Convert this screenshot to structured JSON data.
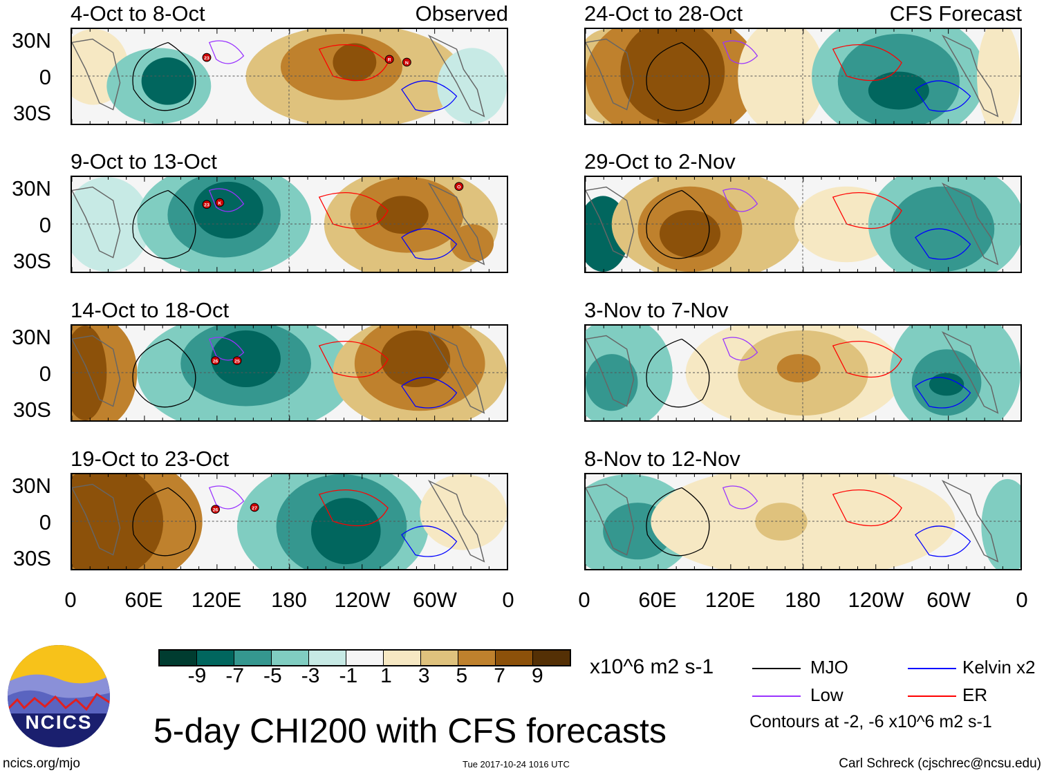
{
  "panels": {
    "observed_label": "Observed",
    "forecast_label": "CFS Forecast",
    "left": [
      {
        "title": "4-Oct to 8-Oct",
        "storms": [
          "23",
          "R",
          "N"
        ]
      },
      {
        "title": "9-Oct to 13-Oct",
        "storms": [
          "23",
          "K",
          "O"
        ]
      },
      {
        "title": "14-Oct to 18-Oct",
        "storms": [
          "26",
          "25"
        ]
      },
      {
        "title": "19-Oct to 23-Oct",
        "storms": [
          "26",
          "27"
        ]
      }
    ],
    "right": [
      {
        "title": "24-Oct to 28-Oct"
      },
      {
        "title": "29-Oct to 2-Nov"
      },
      {
        "title": "3-Nov to 7-Nov"
      },
      {
        "title": "8-Nov to 12-Nov"
      }
    ]
  },
  "axes": {
    "lat_labels": [
      "30N",
      "0",
      "30S"
    ],
    "lon_labels": [
      "0",
      "60E",
      "120E",
      "180",
      "120W",
      "60W",
      "0"
    ]
  },
  "colorbar": {
    "colors": [
      "#003c30",
      "#01665e",
      "#35978f",
      "#80cdc1",
      "#c7eae5",
      "#f5f5f5",
      "#f6e8c3",
      "#dfc27d",
      "#bf812d",
      "#8c510a",
      "#543005"
    ],
    "labels": [
      "-9",
      "-7",
      "-5",
      "-3",
      "-1",
      "1",
      "3",
      "5",
      "7",
      "9"
    ],
    "units": "x10^6 m2 s-1"
  },
  "legend": {
    "items": [
      {
        "label": "MJO",
        "color": "#000000"
      },
      {
        "label": "Kelvin x2",
        "color": "#0000ff"
      },
      {
        "label": "Low",
        "color": "#9933ff"
      },
      {
        "label": "ER",
        "color": "#ff0000"
      }
    ],
    "contours_note": "Contours at -2, -6 x10^6 m2 s-1"
  },
  "footer": {
    "title": "5-day CHI200 with CFS forecasts",
    "logo_text": "NCICS",
    "url": "ncics.org/mjo",
    "timestamp": "Tue 2017-10-24 1016 UTC",
    "credit": "Carl Schreck (cjschrec@ncsu.edu)"
  }
}
